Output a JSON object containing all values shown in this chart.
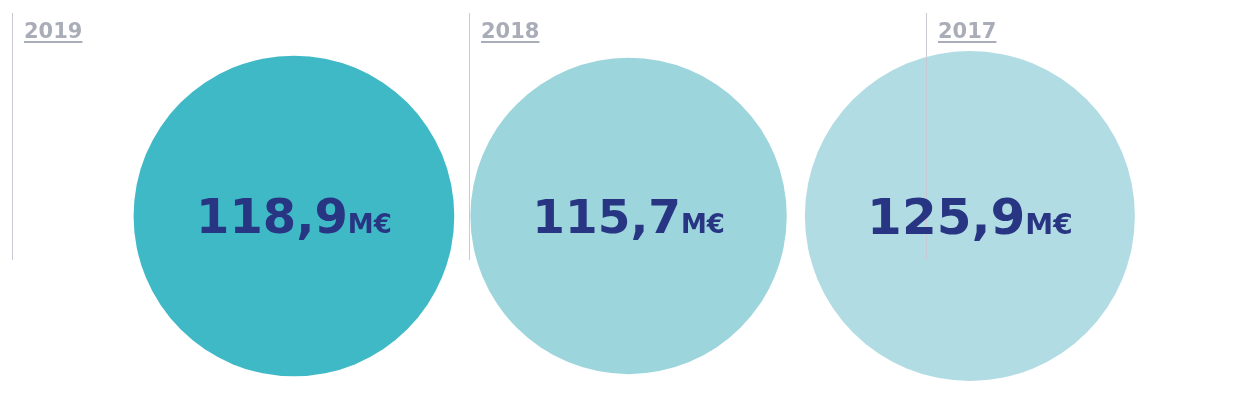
{
  "chart_data": {
    "type": "other",
    "categories": [
      "2019",
      "2018",
      "2017"
    ],
    "values": [
      118.9,
      115.7,
      125.9
    ],
    "colors": [
      "#40b9c6",
      "#9dd5dd",
      "#b1dce3"
    ],
    "value_labels": [
      "118,9M€",
      "115,7M€",
      "125,9M€"
    ]
  }
}
